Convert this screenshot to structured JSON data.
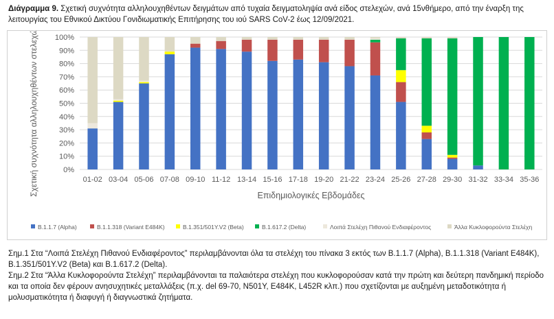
{
  "caption": {
    "label": "Διάγραμμα 9.",
    "text": "Σχετική συχνότητα αλληλουχηθέντων δειγμάτων από τυχαία δειγματοληψία ανά είδος στελεχών, ανά 15νθήμερο, από την έναρξη της λειτουργίας του Εθνικού Δικτύου Γονιδιωματικής Επιτήρησης του ιού SARS CoV-2 έως 12/09/2021."
  },
  "colors": {
    "alpha": "#4472c4",
    "e484k": "#c0504d",
    "beta": "#ffff00",
    "delta": "#00b050",
    "other_voi": "#ede8dc",
    "other_circ": "#ddd9c4",
    "grid": "#d9d9d9",
    "axis_text": "#595959"
  },
  "chart_data": {
    "type": "bar",
    "stacked": true,
    "ylabel": "Σχετική συχνότητα αλληλουχηθέντων στελεχών (%)",
    "xlabel": "Επιδημιολογικές Εβδομάδες",
    "ylim": [
      0,
      100
    ],
    "yticks": [
      "0%",
      "10%",
      "20%",
      "30%",
      "40%",
      "50%",
      "60%",
      "70%",
      "80%",
      "90%",
      "100%"
    ],
    "categories": [
      "01-02",
      "03-04",
      "05-06",
      "07-08",
      "09-10",
      "11-12",
      "13-14",
      "15-16",
      "17-18",
      "19-20",
      "21-22",
      "23-24",
      "25-26",
      "27-28",
      "29-30",
      "31-32",
      "33-34",
      "35-36"
    ],
    "series": [
      {
        "name": "B.1.1.7 (Alpha)",
        "key": "alpha",
        "values": [
          31,
          51,
          65,
          87,
          92,
          91,
          89,
          82,
          83,
          81,
          78,
          71,
          51,
          23,
          8,
          3,
          0,
          0
        ]
      },
      {
        "name": "B.1.1.318 (Variant E484K)",
        "key": "e484k",
        "values": [
          0,
          0,
          0,
          0,
          3,
          6,
          9,
          16,
          15,
          17,
          20,
          25,
          15,
          5,
          1,
          0,
          0,
          0
        ]
      },
      {
        "name": "B.1.351/501Y.V2 (Beta)",
        "key": "beta",
        "values": [
          0,
          1,
          1,
          2,
          0,
          0,
          0,
          0,
          0,
          0,
          0,
          0,
          9,
          5,
          2,
          0,
          0,
          0
        ]
      },
      {
        "name": "B.1.617.2 (Delta)",
        "key": "delta",
        "values": [
          0,
          0,
          0,
          0,
          0,
          0,
          0,
          0,
          0,
          0,
          0,
          2,
          24,
          66,
          88,
          97,
          100,
          100
        ]
      },
      {
        "name": "Λοιπά Στελέχη Πιθανού Ενδιαφέροντος",
        "key": "other_voi",
        "values": [
          4,
          1,
          1,
          0,
          0,
          0,
          0,
          0,
          0,
          0,
          0,
          1,
          0,
          0,
          0,
          0,
          0,
          0
        ]
      },
      {
        "name": "Άλλα Κυκλοφορούντα Στελέχη",
        "key": "other_circ",
        "values": [
          65,
          47,
          33,
          11,
          5,
          3,
          2,
          2,
          2,
          2,
          2,
          1,
          1,
          1,
          1,
          0,
          0,
          0
        ]
      }
    ]
  },
  "notes": [
    "Σημ.1 Στα “Λοιπά Στελέχη Πιθανού Ενδιαφέροντος” περιλαμβάνονται όλα τα στελέχη του πίνακα 3 εκτός των B.1.1.7 (Alpha), B.1.1.318 (Variant E484K), B.1.351/501Y.V2 (Beta) και B.1.617.2 (Delta).",
    "Σημ.2 Στα “Άλλα Κυκλοφορούντα Στελέχη” περιλαμβάνονται τα παλαιότερα στελέχη που κυκλοφορούσαν κατά την πρώτη και δεύτερη πανδημική περίοδο και τα οποία δεν φέρουν ανησυχητικές μεταλλάξεις (π.χ. del 69-70, N501Y, E484K, L452R κλπ.) που σχετίζονται με αυξημένη μεταδοτικότητα ή μολυσματικότητα ή διαφυγή ή διαγνωστικά ζητήματα."
  ]
}
